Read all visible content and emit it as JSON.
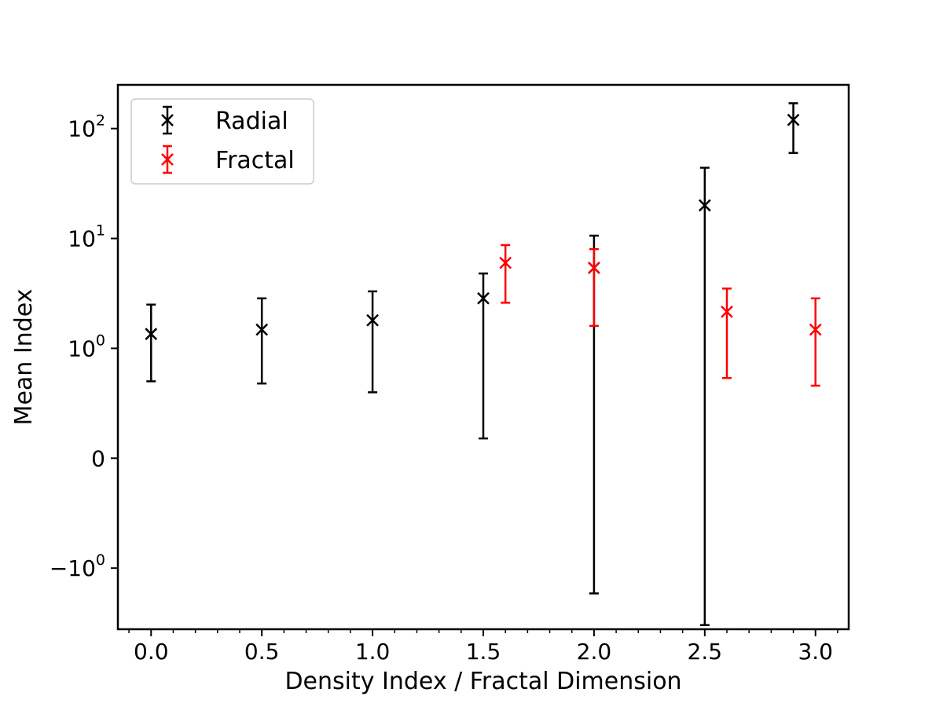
{
  "chart_data": {
    "type": "scatter",
    "title": "",
    "xlabel": "Density Index / Fractal Dimension",
    "ylabel": "Mean Index",
    "yscale": "symlog",
    "linthresh": 1,
    "xlim": [
      -0.15,
      3.15
    ],
    "ylim": [
      -3.6,
      250
    ],
    "grid": false,
    "legend_position": "top-left",
    "x_ticks": [
      {
        "value": 0.0,
        "label": "0.0"
      },
      {
        "value": 0.5,
        "label": "0.5"
      },
      {
        "value": 1.0,
        "label": "1.0"
      },
      {
        "value": 1.5,
        "label": "1.5"
      },
      {
        "value": 2.0,
        "label": "2.0"
      },
      {
        "value": 2.5,
        "label": "2.5"
      },
      {
        "value": 3.0,
        "label": "3.0"
      }
    ],
    "y_ticks": [
      {
        "value": 100,
        "base": "10",
        "exp": "2"
      },
      {
        "value": 10,
        "base": "10",
        "exp": "1"
      },
      {
        "value": 1,
        "base": "10",
        "exp": "0"
      },
      {
        "value": 0,
        "base": "0",
        "exp": ""
      },
      {
        "value": -1,
        "base": "−10",
        "exp": "0"
      }
    ],
    "series": [
      {
        "name": "Radial",
        "color": "#000000",
        "marker": "x",
        "points": [
          {
            "x": 0.0,
            "y": 1.35,
            "ylow": 0.7,
            "yhigh": 2.5
          },
          {
            "x": 0.5,
            "y": 1.48,
            "ylow": 0.68,
            "yhigh": 2.85
          },
          {
            "x": 1.0,
            "y": 1.8,
            "ylow": 0.6,
            "yhigh": 3.3
          },
          {
            "x": 1.5,
            "y": 2.85,
            "ylow": 0.18,
            "yhigh": 4.8
          },
          {
            "x": 2.0,
            "y": 5.4,
            "ylow": -1.7,
            "yhigh": 10.6
          },
          {
            "x": 2.5,
            "y": 20.0,
            "ylow": -3.3,
            "yhigh": 44.0
          },
          {
            "x": 2.9,
            "y": 120.0,
            "ylow": 60.0,
            "yhigh": 170.0
          }
        ]
      },
      {
        "name": "Fractal",
        "color": "#ff0000",
        "marker": "x",
        "points": [
          {
            "x": 1.6,
            "y": 6.0,
            "ylow": 2.6,
            "yhigh": 8.7
          },
          {
            "x": 2.0,
            "y": 5.4,
            "ylow": 1.6,
            "yhigh": 8.0
          },
          {
            "x": 2.6,
            "y": 2.15,
            "ylow": 0.73,
            "yhigh": 3.5
          },
          {
            "x": 3.0,
            "y": 1.48,
            "ylow": 0.66,
            "yhigh": 2.85
          }
        ]
      }
    ]
  }
}
